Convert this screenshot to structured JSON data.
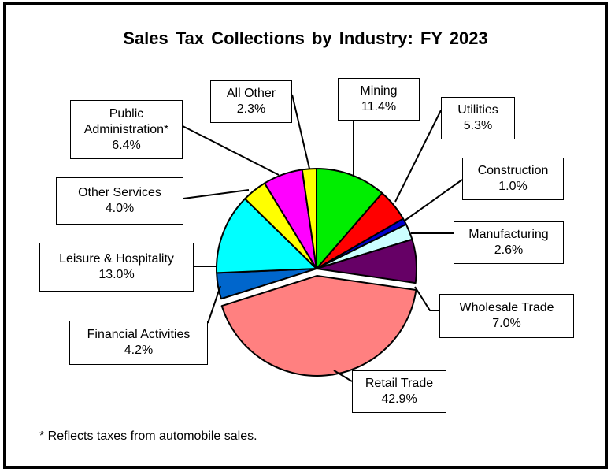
{
  "title": "Sales Tax Collections  by Industry:  FY 2023",
  "footnote": "* Reflects taxes from automobile sales.",
  "chart_data": {
    "type": "pie",
    "title": "Sales Tax Collections  by Industry:  FY 2023",
    "slices": [
      {
        "label": "Mining",
        "value": 11.4,
        "pct": "11.4%",
        "color": "#00ee00"
      },
      {
        "label": "Utilities",
        "value": 5.3,
        "pct": "5.3%",
        "color": "#ff0000"
      },
      {
        "label": "Construction",
        "value": 1.0,
        "pct": "1.0%",
        "color": "#0000cc"
      },
      {
        "label": "Manufacturing",
        "value": 2.6,
        "pct": "2.6%",
        "color": "#ccffff"
      },
      {
        "label": "Wholesale Trade",
        "value": 7.0,
        "pct": "7.0%",
        "color": "#660066"
      },
      {
        "label": "Retail Trade",
        "value": 42.9,
        "pct": "42.9%",
        "color": "#ff8080"
      },
      {
        "label": "Financial Activities",
        "value": 4.2,
        "pct": "4.2%",
        "color": "#0066cc"
      },
      {
        "label": "Leisure & Hospitality",
        "value": 13.0,
        "pct": "13.0%",
        "color": "#00ffff"
      },
      {
        "label": "Other Services",
        "value": 4.0,
        "pct": "4.0%",
        "color": "#ffff00"
      },
      {
        "label": "Public Administration*",
        "value": 6.4,
        "pct": "6.4%",
        "color": "#ff00ff"
      },
      {
        "label": "All Other",
        "value": 2.3,
        "pct": "2.3%",
        "color": "#ffff00"
      }
    ]
  }
}
